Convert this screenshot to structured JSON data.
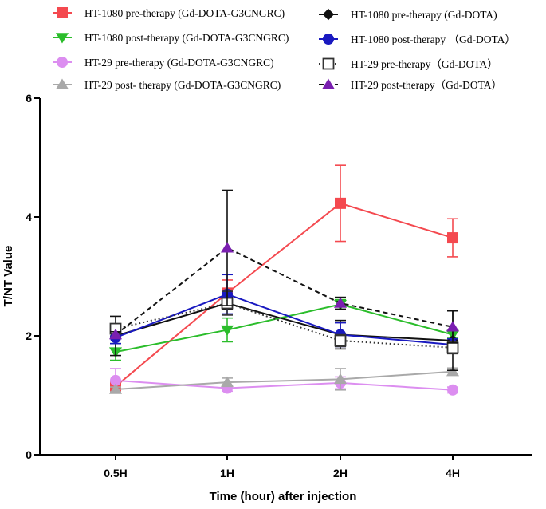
{
  "chart_data": {
    "type": "line",
    "xlabel": "Time (hour) after injection",
    "ylabel": "T/NT Value",
    "categories": [
      "0.5H",
      "1H",
      "2H",
      "4H"
    ],
    "ylim": [
      0,
      6
    ],
    "yticks": [
      0,
      2,
      4,
      6
    ],
    "legend_position": "top",
    "series": [
      {
        "name": "HT-1080 pre-therapy (Gd-DOTA-G3CNGRC)",
        "color": "#f4494f",
        "dash": "solid",
        "marker": "square",
        "filled": true,
        "values": [
          1.15,
          2.72,
          4.23,
          3.65
        ],
        "errors": [
          0.06,
          0.22,
          0.64,
          0.32
        ]
      },
      {
        "name": "HT-1080 post-therapy (Gd-DOTA-G3CNGRC)",
        "color": "#2bbd2b",
        "dash": "solid",
        "marker": "triangle-down",
        "filled": true,
        "values": [
          1.73,
          2.1,
          2.53,
          2.02
        ],
        "errors": [
          0.14,
          0.2,
          0.08,
          0.06
        ]
      },
      {
        "name": "HT-29 pre-therapy (Gd-DOTA-G3CNGRC)",
        "color": "#dc8ef0",
        "dash": "solid",
        "marker": "circle",
        "filled": true,
        "values": [
          1.25,
          1.12,
          1.21,
          1.09
        ],
        "errors": [
          0.2,
          0.05,
          0.1,
          0.05
        ]
      },
      {
        "name": "HT-29 post- therapy (Gd-DOTA-G3CNGRC)",
        "color": "#a9a9a9",
        "dash": "solid",
        "marker": "triangle-up",
        "filled": true,
        "values": [
          1.1,
          1.22,
          1.27,
          1.4
        ],
        "errors": [
          0.04,
          0.07,
          0.18,
          0.06
        ]
      },
      {
        "name": "HT-1080 pre-therapy  (Gd-DOTA)",
        "color": "#111111",
        "dash": "solid",
        "marker": "diamond",
        "filled": true,
        "values": [
          2.0,
          2.55,
          2.02,
          1.92
        ],
        "errors": [
          0.33,
          0.1,
          0.24,
          0.5
        ]
      },
      {
        "name": "HT-1080 post-therapy （Gd-DOTA）",
        "color": "#1919c0",
        "dash": "solid",
        "marker": "circle",
        "filled": true,
        "values": [
          1.97,
          2.7,
          2.02,
          1.85
        ],
        "errors": [
          0.1,
          0.33,
          0.2,
          0.1
        ]
      },
      {
        "name": "HT-29 pre-therapy（Gd-DOTA）",
        "color": "#333333",
        "dash": "dotted",
        "marker": "square",
        "filled": false,
        "values": [
          2.12,
          2.55,
          1.92,
          1.8
        ],
        "errors": [
          0.08,
          0.2,
          0.1,
          0.1
        ]
      },
      {
        "name": "HT-29 post-therapy（Gd-DOTA）",
        "color": "#111111",
        "dash": "dashed",
        "marker": "triangle-up",
        "filled": true,
        "marker_fill": "#7a1fb0",
        "values": [
          2.02,
          3.48,
          2.55,
          2.15
        ],
        "errors": [
          0.05,
          0.97,
          0.1,
          0.27
        ]
      }
    ]
  }
}
